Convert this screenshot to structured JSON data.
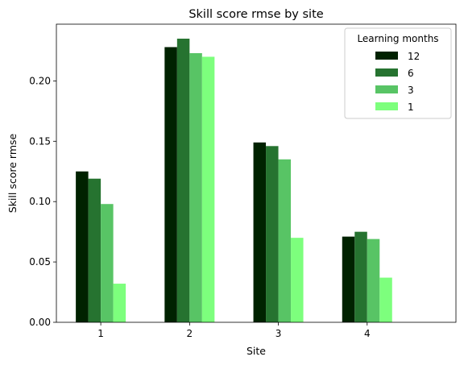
{
  "chart_data": {
    "type": "bar",
    "title": "Skill score rmse by site",
    "xlabel": "Site",
    "ylabel": "Skill score rmse",
    "categories": [
      "1",
      "2",
      "3",
      "4"
    ],
    "series": [
      {
        "name": "12",
        "color": "#002200",
        "values": [
          0.125,
          0.228,
          0.149,
          0.071
        ]
      },
      {
        "name": "6",
        "color": "#267330",
        "values": [
          0.119,
          0.235,
          0.146,
          0.075
        ]
      },
      {
        "name": "3",
        "color": "#58c465",
        "values": [
          0.098,
          0.223,
          0.135,
          0.069
        ]
      },
      {
        "name": "1",
        "color": "#7dff7d",
        "values": [
          0.032,
          0.22,
          0.07,
          0.037
        ]
      }
    ],
    "ylim": [
      0,
      0.247
    ],
    "yticks": [
      0.0,
      0.05,
      0.1,
      0.15,
      0.2
    ],
    "ytick_labels": [
      "0.00",
      "0.05",
      "0.10",
      "0.15",
      "0.20"
    ],
    "grid": false,
    "legend": {
      "title": "Learning months",
      "placement": "top-right"
    }
  }
}
